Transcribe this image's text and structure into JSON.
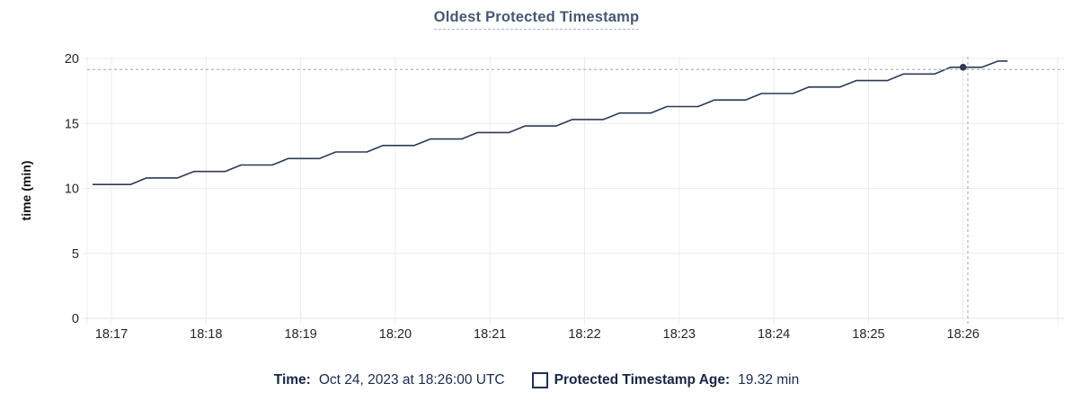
{
  "colors": {
    "line": "#2c3a57",
    "dot": "#2c3a57",
    "title": "#475872",
    "crosshair": "#a7b6c4",
    "grid": "#ececec",
    "axis_line": "#e3e3e3",
    "axis_text": "#24262b",
    "ylabel_text": "#111111",
    "legend_text": "#1b2a4e"
  },
  "legend": {
    "time_label": "Time:",
    "time_value": "Oct 24, 2023 at 18:26:00 UTC",
    "series_label": "Protected Timestamp Age:",
    "series_value": "19.32 min",
    "series_checkbox_icon": "checkbox-outline-icon"
  },
  "chart_data": {
    "type": "line",
    "title": "Oldest Protected Timestamp",
    "xlabel": "",
    "ylabel": "time (min)",
    "ylim": [
      0,
      20
    ],
    "y_ticks": [
      0,
      5,
      10,
      15,
      20
    ],
    "x_ticks": [
      "18:17",
      "18:18",
      "18:19",
      "18:20",
      "18:21",
      "18:22",
      "18:23",
      "18:24",
      "18:25",
      "18:26"
    ],
    "x_tick_minutes": [
      17,
      18,
      19,
      20,
      21,
      22,
      23,
      24,
      25,
      26
    ],
    "x_grid_extra_minutes": [
      27
    ],
    "xlim_minutes": [
      16.74,
      27.07
    ],
    "grid": true,
    "legend_position": "bottom",
    "series": [
      {
        "name": "Protected Timestamp Age",
        "unit": "min",
        "style": "staircase",
        "start_point": [
          16.8,
          10.3
        ],
        "end_minute": 26.47,
        "ramp_minutes": 0.17,
        "step_points": [
          [
            16.87,
            10.3
          ],
          [
            17.37,
            10.8
          ],
          [
            17.87,
            11.3
          ],
          [
            18.37,
            11.8
          ],
          [
            18.87,
            12.3
          ],
          [
            19.37,
            12.8
          ],
          [
            19.87,
            13.3
          ],
          [
            20.37,
            13.8
          ],
          [
            20.87,
            14.3
          ],
          [
            21.37,
            14.8
          ],
          [
            21.87,
            15.3
          ],
          [
            22.37,
            15.8
          ],
          [
            22.87,
            16.3
          ],
          [
            23.37,
            16.8
          ],
          [
            23.87,
            17.3
          ],
          [
            24.37,
            17.8
          ],
          [
            24.87,
            18.3
          ],
          [
            25.37,
            18.8
          ],
          [
            25.87,
            19.32
          ],
          [
            26.37,
            19.8
          ]
        ]
      }
    ],
    "highlight": {
      "hover_time": "18:26",
      "hover_time_full": "Oct 24, 2023 at 18:26:00 UTC",
      "point_minute": 26.0,
      "point_value": 19.32,
      "crosshair_minute": 26.05,
      "crosshair_value": 19.15
    }
  }
}
